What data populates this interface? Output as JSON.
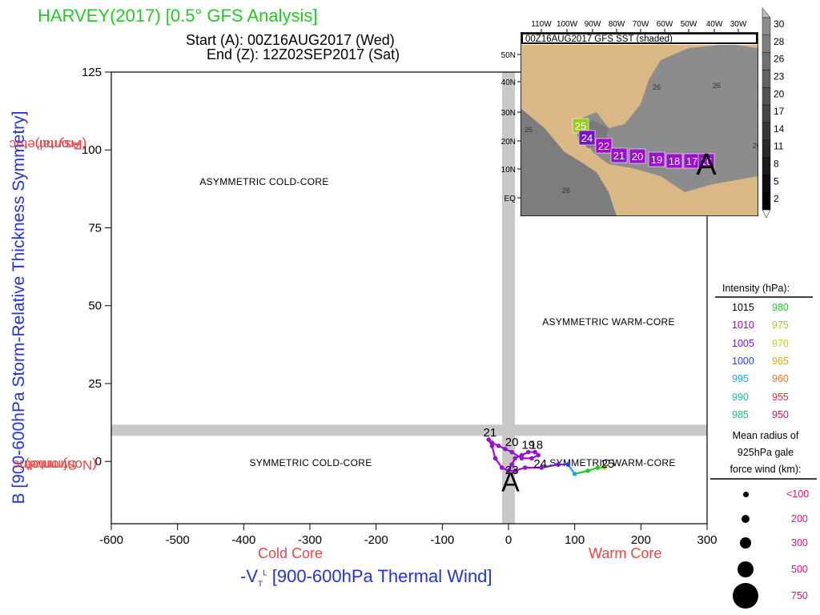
{
  "header": {
    "title": "HARVEY(2017) [0.5° GFS Analysis]",
    "start": "Start (A): 00Z16AUG2017 (Wed)",
    "end": "End (Z): 12Z02SEP2017 (Sat)"
  },
  "axes": {
    "ylabel": "B [900-600hPa Storm-Relative Thickness Symmetry]",
    "y_top_side": [
      "Asymmetric",
      "(Frontal)"
    ],
    "y_bottom_side": [
      "Symmetric",
      "(Nonfrontal)"
    ],
    "x_cold": "Cold Core",
    "x_warm": "Warm Core",
    "xlabel_prefix": "-V",
    "xlabel_sub": "T",
    "xlabel_sup": "L",
    "xlabel_main": " [900-600hPa Thermal Wind]"
  },
  "quadrants": {
    "asym_cold": "ASYMMETRIC COLD-CORE",
    "asym_warm": "ASYMMETRIC WARM-CORE",
    "sym_cold": "SYMMETRIC COLD-CORE",
    "sym_warm": "SYMMETRIC WARM-CORE"
  },
  "chart_data": {
    "type": "scatter",
    "xlim": [
      -600,
      300
    ],
    "ylim": [
      -20,
      125
    ],
    "x_ticks": [
      -600,
      -500,
      -400,
      -300,
      -200,
      -100,
      0,
      100,
      200,
      300
    ],
    "y_ticks": [
      0,
      25,
      50,
      75,
      100,
      125
    ],
    "threshold_bands": {
      "x": 0,
      "y": 10
    },
    "track": [
      {
        "x": 0,
        "y": -3,
        "hpa": 1008
      },
      {
        "x": 5,
        "y": -1,
        "hpa": 1008
      },
      {
        "x": 10,
        "y": 1,
        "hpa": 1008
      },
      {
        "x": 20,
        "y": 2,
        "hpa": 1008
      },
      {
        "x": 30,
        "y": 3,
        "hpa": 1008
      },
      {
        "x": 40,
        "y": 3,
        "hpa": 1008
      },
      {
        "x": 45,
        "y": 2,
        "hpa": 1008
      },
      {
        "x": 35,
        "y": 1,
        "hpa": 1008
      },
      {
        "x": 20,
        "y": 1,
        "hpa": 1008
      },
      {
        "x": 5,
        "y": 3,
        "hpa": 1008
      },
      {
        "x": -5,
        "y": 4,
        "hpa": 1008
      },
      {
        "x": -15,
        "y": 5,
        "hpa": 1008
      },
      {
        "x": -25,
        "y": 6,
        "hpa": 1008
      },
      {
        "x": -30,
        "y": 7,
        "hpa": 1008
      },
      {
        "x": -25,
        "y": 5,
        "hpa": 1008
      },
      {
        "x": -20,
        "y": 1,
        "hpa": 1008
      },
      {
        "x": -10,
        "y": -2,
        "hpa": 1008
      },
      {
        "x": 0,
        "y": -3,
        "hpa": 1008
      },
      {
        "x": 10,
        "y": -3,
        "hpa": 1008
      },
      {
        "x": 25,
        "y": -2,
        "hpa": 1008
      },
      {
        "x": 50,
        "y": -2,
        "hpa": 1006
      },
      {
        "x": 75,
        "y": -1,
        "hpa": 1004
      },
      {
        "x": 90,
        "y": -1,
        "hpa": 1000
      },
      {
        "x": 100,
        "y": -4,
        "hpa": 995
      },
      {
        "x": 120,
        "y": -3,
        "hpa": 980
      },
      {
        "x": 135,
        "y": -2,
        "hpa": 978
      },
      {
        "x": 145,
        "y": -2,
        "hpa": 975
      }
    ],
    "day_labels": [
      {
        "text": "21",
        "x": -28,
        "y": 8
      },
      {
        "text": "20",
        "x": 5,
        "y": 5
      },
      {
        "text": "19",
        "x": 30,
        "y": 4
      },
      {
        "text": "18",
        "x": 42,
        "y": 4
      },
      {
        "text": "23",
        "x": 5,
        "y": -4
      },
      {
        "text": "24",
        "x": 48,
        "y": -2
      },
      {
        "text": "25",
        "x": 150,
        "y": -2
      }
    ],
    "start_marker": {
      "text": "A",
      "x": 3,
      "y": -6
    }
  },
  "inset_map": {
    "title": "00Z16AUG2017 GFS SST (shaded)",
    "lon_labels": [
      "110W",
      "100W",
      "90W",
      "80W",
      "70W",
      "60W",
      "50W",
      "40W",
      "30W"
    ],
    "lat_labels": [
      "50N",
      "40N",
      "30N",
      "20N",
      "10N",
      "EQ"
    ],
    "contour_labels": [
      "26",
      "26",
      "26",
      "26",
      "26"
    ],
    "track_labels": [
      "25",
      "24",
      "22",
      "21",
      "20",
      "19",
      "18",
      "17",
      "16"
    ],
    "start_marker": "A",
    "colorbar": [
      "30",
      "28",
      "26",
      "23",
      "20",
      "17",
      "14",
      "11",
      "8",
      "5",
      "2"
    ]
  },
  "legend": {
    "title": "Intensity (hPa):",
    "left": [
      {
        "v": "1015",
        "c": "#000000"
      },
      {
        "v": "1010",
        "c": "#aa00cc"
      },
      {
        "v": "1005",
        "c": "#7711cc"
      },
      {
        "v": "1000",
        "c": "#2244ee"
      },
      {
        "v": "995",
        "c": "#11aaee"
      },
      {
        "v": "990",
        "c": "#11bbbb"
      },
      {
        "v": "985",
        "c": "#22bb88"
      }
    ],
    "right": [
      {
        "v": "980",
        "c": "#22cc22"
      },
      {
        "v": "975",
        "c": "#99cc22"
      },
      {
        "v": "970",
        "c": "#cccc11"
      },
      {
        "v": "965",
        "c": "#ddaa00"
      },
      {
        "v": "960",
        "c": "#dd7722"
      },
      {
        "v": "955",
        "c": "#dd3333"
      },
      {
        "v": "950",
        "c": "#dd1177"
      }
    ],
    "radius_title": [
      "Mean radius of",
      "925hPa gale",
      "force wind (km):"
    ],
    "radii": [
      "<100",
      "200",
      "300",
      "500",
      "750"
    ]
  }
}
